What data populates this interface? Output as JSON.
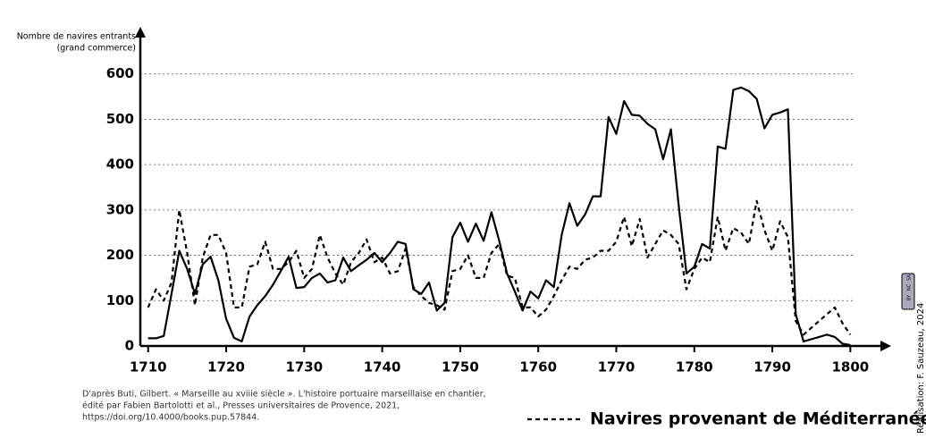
{
  "chart_data": {
    "type": "line",
    "y_label": [
      "Nombre de navires entrants",
      "(grand commerce)"
    ],
    "x": [
      1710,
      1711,
      1712,
      1713,
      1714,
      1715,
      1716,
      1717,
      1718,
      1719,
      1720,
      1721,
      1722,
      1723,
      1724,
      1725,
      1726,
      1727,
      1728,
      1729,
      1730,
      1731,
      1732,
      1733,
      1734,
      1735,
      1736,
      1737,
      1738,
      1739,
      1740,
      1741,
      1742,
      1743,
      1744,
      1745,
      1746,
      1747,
      1748,
      1749,
      1750,
      1751,
      1752,
      1753,
      1754,
      1755,
      1756,
      1757,
      1758,
      1759,
      1760,
      1761,
      1762,
      1763,
      1764,
      1765,
      1766,
      1767,
      1768,
      1769,
      1770,
      1771,
      1772,
      1773,
      1774,
      1775,
      1776,
      1777,
      1778,
      1779,
      1780,
      1781,
      1782,
      1783,
      1784,
      1785,
      1786,
      1787,
      1788,
      1789,
      1790,
      1791,
      1792,
      1793,
      1794,
      1795,
      1796,
      1797,
      1798,
      1799,
      1800
    ],
    "series": [
      {
        "color": "#000000",
        "style": "solid",
        "values": [
          17,
          17,
          22,
          115,
          210,
          170,
          115,
          180,
          197,
          145,
          60,
          18,
          10,
          65,
          90,
          110,
          135,
          165,
          197,
          128,
          130,
          150,
          160,
          140,
          145,
          195,
          165,
          178,
          190,
          205,
          185,
          205,
          230,
          225,
          125,
          115,
          140,
          78,
          95,
          240,
          272,
          230,
          270,
          232,
          295,
          232,
          160,
          120,
          78,
          120,
          105,
          145,
          130,
          245,
          315,
          265,
          290,
          330,
          330,
          505,
          468,
          540,
          510,
          508,
          490,
          478,
          412,
          478,
          310,
          160,
          175,
          225,
          215,
          440,
          435,
          565,
          570,
          562,
          545,
          480,
          510,
          515,
          522,
          70,
          10,
          15,
          20,
          25,
          20,
          5,
          2
        ]
      },
      {
        "name": "Navires provenant de Méditerranée",
        "color": "#000000",
        "style": "dashed",
        "values": [
          85,
          125,
          100,
          140,
          300,
          205,
          90,
          195,
          245,
          245,
          205,
          85,
          85,
          175,
          180,
          230,
          170,
          170,
          185,
          210,
          150,
          170,
          245,
          195,
          160,
          135,
          185,
          205,
          235,
          185,
          195,
          160,
          165,
          215,
          130,
          110,
          95,
          90,
          80,
          165,
          170,
          200,
          150,
          150,
          205,
          225,
          155,
          150,
          85,
          85,
          65,
          80,
          110,
          145,
          175,
          170,
          190,
          195,
          210,
          210,
          230,
          285,
          220,
          280,
          195,
          225,
          255,
          245,
          225,
          125,
          170,
          195,
          185,
          285,
          210,
          260,
          250,
          225,
          320,
          255,
          210,
          275,
          240,
          55,
          25,
          40,
          55,
          70,
          85,
          50,
          25
        ]
      }
    ],
    "xlim": [
      1709,
      1805
    ],
    "xticks": [
      1710,
      1720,
      1730,
      1740,
      1750,
      1760,
      1770,
      1780,
      1790,
      1800
    ],
    "ylim": [
      0,
      700
    ],
    "yticks": [
      0,
      100,
      200,
      300,
      400,
      500,
      600
    ],
    "grid": true,
    "source": [
      "D'après Buti, Gilbert. « Marseille au xviiie siècle ». L'histoire portuaire marseillaise en chantier,",
      "édité par Fabien Bartolotti et al., Presses universitaires de Provence, 2021,",
      "https://doi.org/10.4000/books.pup.57844."
    ],
    "credit": "Réalisation: F. Sauzeau, 2024",
    "license": [
      "BY",
      "NC",
      "SA"
    ]
  }
}
